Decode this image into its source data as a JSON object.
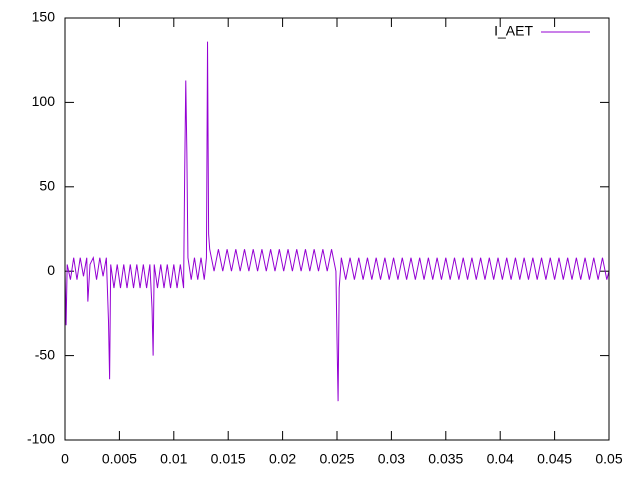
{
  "chart_data": {
    "type": "line",
    "x": [
      0,
      0.0001,
      0.0002,
      0.0005,
      0.0008,
      0.0011,
      0.0014,
      0.0017,
      0.002,
      0.0021,
      0.0023,
      0.0026,
      0.0029,
      0.0032,
      0.0035,
      0.0038,
      0.004,
      0.0041,
      0.0042,
      0.0045,
      0.0048,
      0.0051,
      0.0054,
      0.0057,
      0.006,
      0.0063,
      0.0066,
      0.0069,
      0.0072,
      0.0075,
      0.0078,
      0.008,
      0.0081,
      0.0082,
      0.0085,
      0.0088,
      0.0091,
      0.0094,
      0.0097,
      0.01,
      0.0103,
      0.0106,
      0.0109,
      0.011,
      0.0111,
      0.0112,
      0.0113,
      0.0116,
      0.0119,
      0.0122,
      0.0125,
      0.0128,
      0.013,
      0.0131,
      0.0132,
      0.0133,
      0.0137,
      0.0141,
      0.0145,
      0.0149,
      0.0153,
      0.0157,
      0.0161,
      0.0165,
      0.0169,
      0.0173,
      0.0177,
      0.0181,
      0.0185,
      0.0189,
      0.0193,
      0.0197,
      0.0201,
      0.0205,
      0.0209,
      0.0213,
      0.0217,
      0.0221,
      0.0225,
      0.0229,
      0.0233,
      0.0237,
      0.0241,
      0.0245,
      0.0249,
      0.025,
      0.0251,
      0.0252,
      0.0254,
      0.0258,
      0.0262,
      0.0266,
      0.027,
      0.0274,
      0.0278,
      0.0282,
      0.0286,
      0.029,
      0.0294,
      0.0298,
      0.0302,
      0.0306,
      0.031,
      0.0314,
      0.0318,
      0.0322,
      0.0326,
      0.033,
      0.0334,
      0.0338,
      0.0342,
      0.0346,
      0.035,
      0.0354,
      0.0358,
      0.0362,
      0.0366,
      0.037,
      0.0374,
      0.0378,
      0.0382,
      0.0386,
      0.039,
      0.0394,
      0.0398,
      0.0402,
      0.0406,
      0.041,
      0.0414,
      0.0418,
      0.0422,
      0.0426,
      0.043,
      0.0434,
      0.0438,
      0.0442,
      0.0446,
      0.045,
      0.0454,
      0.0458,
      0.0462,
      0.0466,
      0.047,
      0.0474,
      0.0478,
      0.0482,
      0.0486,
      0.049,
      0.0494,
      0.0498,
      0.05
    ],
    "series": [
      {
        "name": "I_AET",
        "color": "#9400d3",
        "values": [
          0,
          -32,
          4,
          -5,
          8,
          -5,
          8,
          -3,
          8,
          -18,
          4,
          8,
          -5,
          8,
          -3,
          8,
          -30,
          -64,
          4,
          -10,
          4,
          -10,
          4,
          -10,
          4,
          -10,
          4,
          -10,
          4,
          -10,
          4,
          -22,
          -50,
          4,
          -10,
          4,
          -10,
          4,
          -10,
          4,
          -10,
          4,
          -10,
          58,
          113,
          70,
          8,
          -5,
          8,
          -5,
          8,
          -5,
          8,
          136,
          22,
          13,
          0,
          13,
          0,
          13,
          0,
          13,
          0,
          13,
          0,
          13,
          0,
          13,
          0,
          13,
          0,
          13,
          0,
          13,
          0,
          13,
          0,
          13,
          0,
          13,
          0,
          13,
          0,
          13,
          0,
          -40,
          -77,
          -10,
          8,
          -5,
          8,
          -5,
          8,
          -5,
          8,
          -5,
          8,
          -5,
          8,
          -5,
          8,
          -5,
          8,
          -5,
          8,
          -5,
          8,
          -5,
          8,
          -5,
          8,
          -5,
          8,
          -5,
          8,
          -5,
          8,
          -5,
          8,
          -5,
          8,
          -5,
          8,
          -5,
          8,
          -5,
          8,
          -5,
          8,
          -5,
          8,
          -5,
          8,
          -5,
          8,
          -5,
          8,
          -5,
          8,
          -5,
          8,
          -5,
          8,
          -5,
          8,
          -5,
          8,
          -5,
          8,
          -5,
          0
        ]
      }
    ],
    "xlim": [
      0,
      0.05
    ],
    "xticks": [
      0,
      0.005,
      0.01,
      0.015,
      0.02,
      0.025,
      0.03,
      0.035,
      0.04,
      0.045,
      0.05
    ],
    "ylim": [
      -100,
      150
    ],
    "yticks": [
      -100,
      -50,
      0,
      50,
      100,
      150
    ],
    "legend": "top-right"
  }
}
